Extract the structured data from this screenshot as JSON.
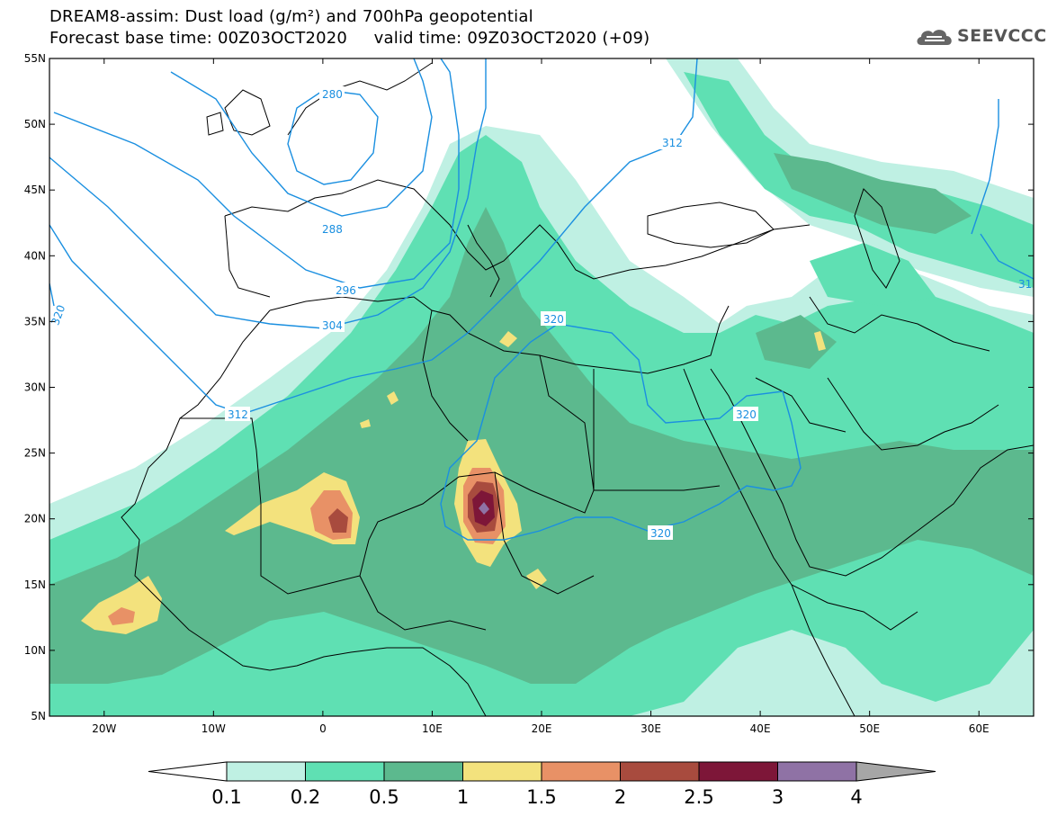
{
  "header": {
    "title_line1": "DREAM8-assim: Dust load (g/m²) and 700hPa geopotential",
    "title_line2": "Forecast base time: 00Z03OCT2020     valid time: 09Z03OCT2020 (+09)",
    "logo_text": "SEEVCCC"
  },
  "map": {
    "lat_labels": [
      "55N",
      "50N",
      "45N",
      "40N",
      "35N",
      "30N",
      "25N",
      "20N",
      "15N",
      "10N",
      "5N"
    ],
    "lon_labels": [
      "20W",
      "10W",
      "0",
      "10E",
      "20E",
      "30E",
      "40E",
      "50E",
      "60E"
    ],
    "lon_range": [
      -25,
      65
    ],
    "lat_range": [
      5,
      55
    ],
    "contour_color": "#1a8fe0",
    "contour_labels": [
      "280",
      "288",
      "296",
      "304",
      "312",
      "312",
      "320",
      "320",
      "320",
      "320",
      "31"
    ]
  },
  "legend": {
    "labels": [
      "0.1",
      "0.2",
      "0.5",
      "1",
      "1.5",
      "2",
      "2.5",
      "3",
      "4"
    ],
    "colors": [
      "#bff0e3",
      "#5fe0b3",
      "#5cb98e",
      "#f3e27d",
      "#e89166",
      "#a84b3e",
      "#7d1638",
      "#8f72a5",
      "#a6a6a6"
    ],
    "under_color": "#ffffff"
  }
}
